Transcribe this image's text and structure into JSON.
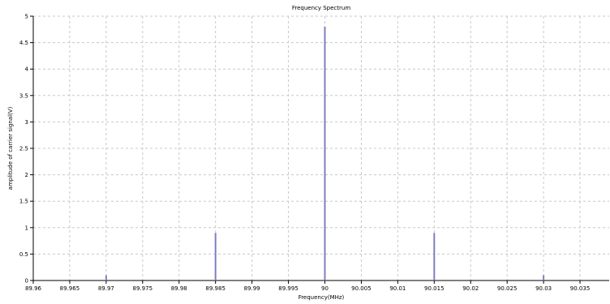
{
  "chart_data": {
    "type": "bar",
    "title": "Frequency Spectrum",
    "xlabel": "Frequency(MHz)",
    "ylabel": "amplitude of carrier signal(V)",
    "xlim": [
      89.96,
      90.039
    ],
    "ylim": [
      0,
      5
    ],
    "grid": true,
    "legend": "none",
    "x_ticks": [
      "89.96",
      "89.965",
      "89.97",
      "89.975",
      "89.98",
      "89.985",
      "89.99",
      "89.995",
      "90",
      "90.005",
      "90.01",
      "90.015",
      "90.02",
      "90.025",
      "90.03",
      "90.035"
    ],
    "y_ticks": [
      "0",
      "0.5",
      "1",
      "1.5",
      "2",
      "2.5",
      "3",
      "3.5",
      "4",
      "4.5",
      "5"
    ],
    "series": [
      {
        "x": [
          89.97,
          89.985,
          90.0,
          90.015,
          90.03
        ],
        "values": [
          0.1,
          0.9,
          4.8,
          0.9,
          0.1
        ]
      }
    ],
    "colors": {
      "bar": "#7f7fbf",
      "grid": "#c8c8c8",
      "axis": "#000000"
    }
  }
}
